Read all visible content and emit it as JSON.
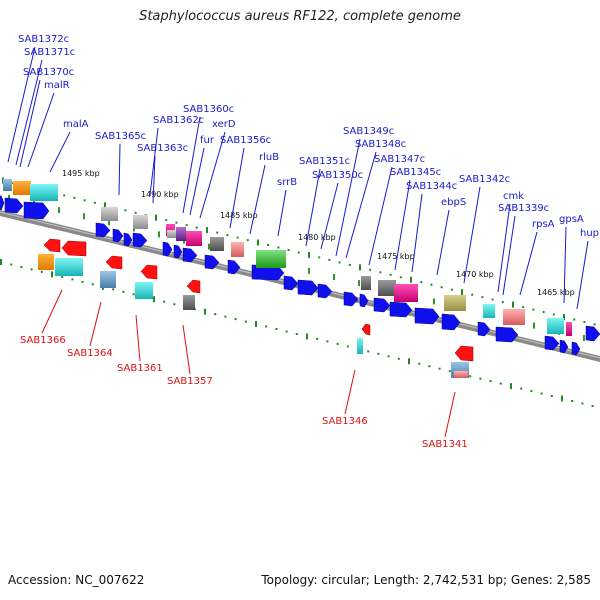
{
  "title": "Staphylococcus aureus RF122, complete genome",
  "footer": {
    "accession": "Accession: NC_007622",
    "topology": "Topology: circular; Length: 2,742,531 bp; Genes: 2,585"
  },
  "colors": {
    "forward_label": "#1a1acc",
    "reverse_label": "#dd1111",
    "forward_arrow": "#1010ee",
    "reverse_arrow": "#ff1111",
    "backbone": "#8a8a8a",
    "tick": "#1f8a1f"
  },
  "scale_labels": [
    "1495 kbp",
    "1490 kbp",
    "1485 kbp",
    "1480 kbp",
    "1475 kbp",
    "1470 kbp",
    "1465 kbp"
  ],
  "forward_genes": [
    "SAB1372c",
    "SAB1371c",
    "SAB1370c",
    "malR",
    "malA",
    "SAB1365c",
    "SAB1362c",
    "SAB1363c",
    "SAB1360c",
    "fur",
    "xerD",
    "SAB1356c",
    "rluB",
    "srrB",
    "SAB1351c",
    "SAB1350c",
    "SAB1349c",
    "SAB1348c",
    "SAB1347c",
    "SAB1345c",
    "SAB1344c",
    "ebpS",
    "SAB1342c",
    "cmk",
    "SAB1339c",
    "rpsA",
    "gpsA",
    "hup"
  ],
  "reverse_genes": [
    "SAB1366",
    "SAB1364",
    "SAB1361",
    "SAB1357",
    "SAB1346",
    "SAB1341"
  ]
}
